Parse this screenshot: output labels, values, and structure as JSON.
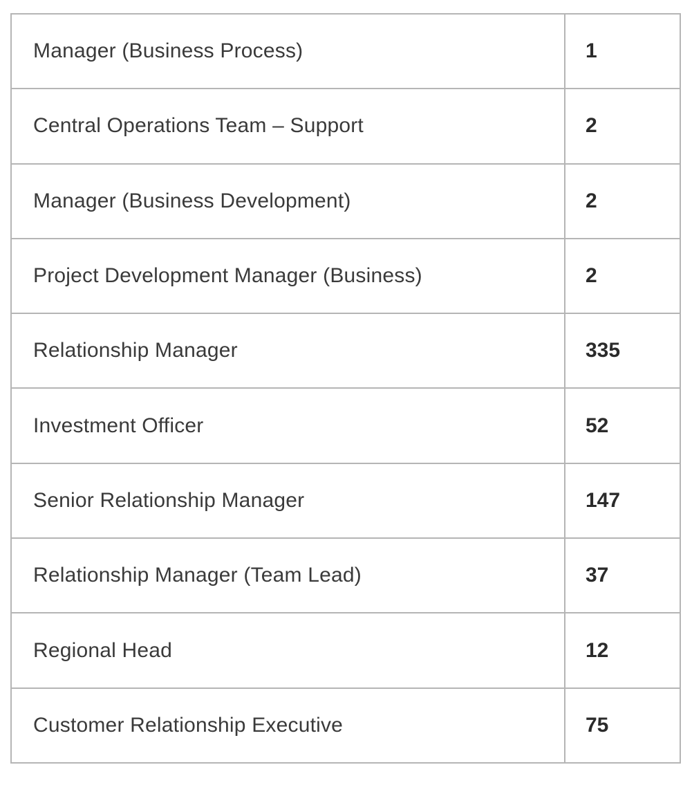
{
  "table": {
    "description": "role-count-table",
    "columns": [
      "role",
      "count"
    ],
    "rows": [
      {
        "label": "Manager (Business Process)",
        "count": "1"
      },
      {
        "label": "Central Operations Team – Support",
        "count": "2"
      },
      {
        "label": "Manager (Business Development)",
        "count": "2"
      },
      {
        "label": "Project Development Manager (Business)",
        "count": "2"
      },
      {
        "label": "Relationship Manager",
        "count": "335"
      },
      {
        "label": "Investment Officer",
        "count": "52"
      },
      {
        "label": "Senior Relationship Manager",
        "count": "147"
      },
      {
        "label": "Relationship Manager (Team Lead)",
        "count": "37"
      },
      {
        "label": "Regional Head",
        "count": "12"
      },
      {
        "label": "Customer Relationship Executive",
        "count": "75"
      }
    ],
    "colors": {
      "border": "#b5b5b5",
      "label_text": "#3a3a3a",
      "count_text": "#2b2b2b",
      "background": "#ffffff"
    }
  }
}
